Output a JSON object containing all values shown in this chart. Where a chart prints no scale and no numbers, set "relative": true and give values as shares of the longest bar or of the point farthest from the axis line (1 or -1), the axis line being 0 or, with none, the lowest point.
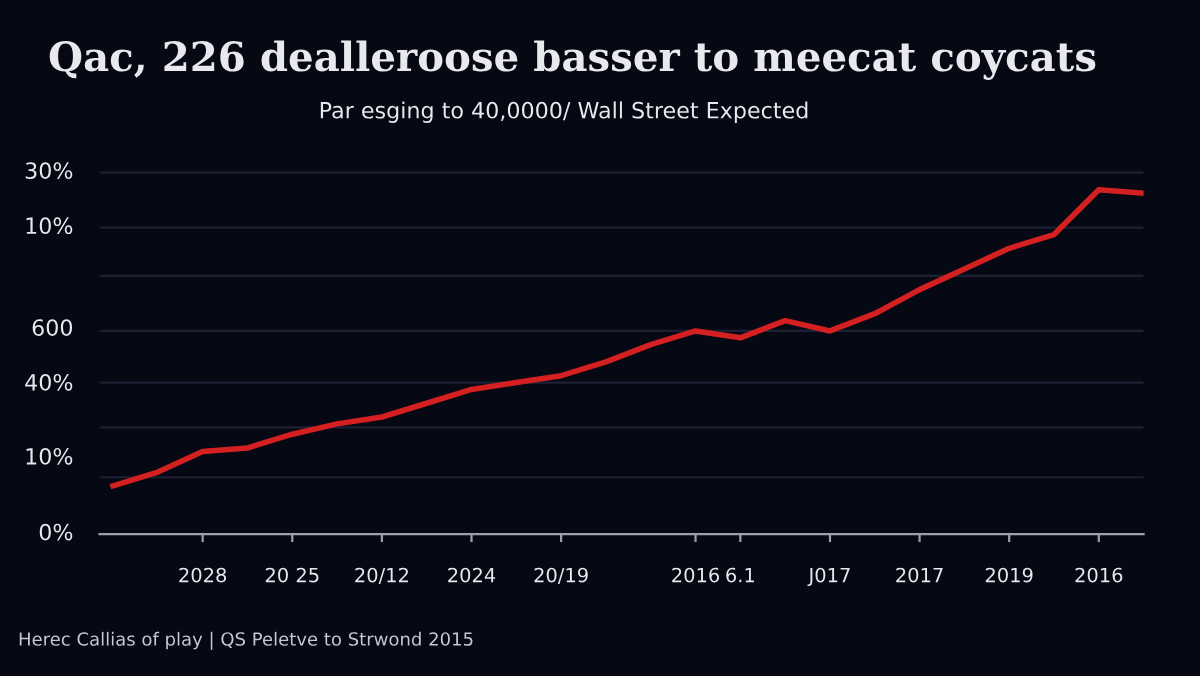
{
  "chart_data": {
    "type": "line",
    "title": "Qac, 226 dealleroose basser to meecat coycats",
    "subtitle": "Par esging to 40,0000/ Wall Street Expected",
    "annotations": [
      "0%",
      "10%",
      "40%",
      "600",
      "10%",
      "30%",
      "Herec Callias of play | QS Peletve to Strwond 2015"
    ],
    "relative": true,
    "categories": [
      null,
      null,
      "2028",
      null,
      "20 25",
      null,
      "20/12",
      null,
      "2024",
      null,
      "20/19",
      null,
      null,
      "2016",
      "6.1",
      null,
      "J017",
      null,
      "2017",
      null,
      "2019",
      null,
      "2016",
      null
    ],
    "series": [
      {
        "color": "#d42020",
        "values": [
          0.14,
          0.18,
          0.24,
          0.25,
          0.29,
          0.32,
          0.34,
          0.38,
          0.42,
          0.44,
          0.46,
          0.5,
          0.55,
          0.59,
          0.57,
          0.62,
          0.59,
          0.64,
          0.71,
          0.77,
          0.83,
          0.87,
          1,
          0.99
        ]
      }
    ],
    "grid": "y",
    "legend": false,
    "marker": "none",
    "line_style": "solid"
  }
}
